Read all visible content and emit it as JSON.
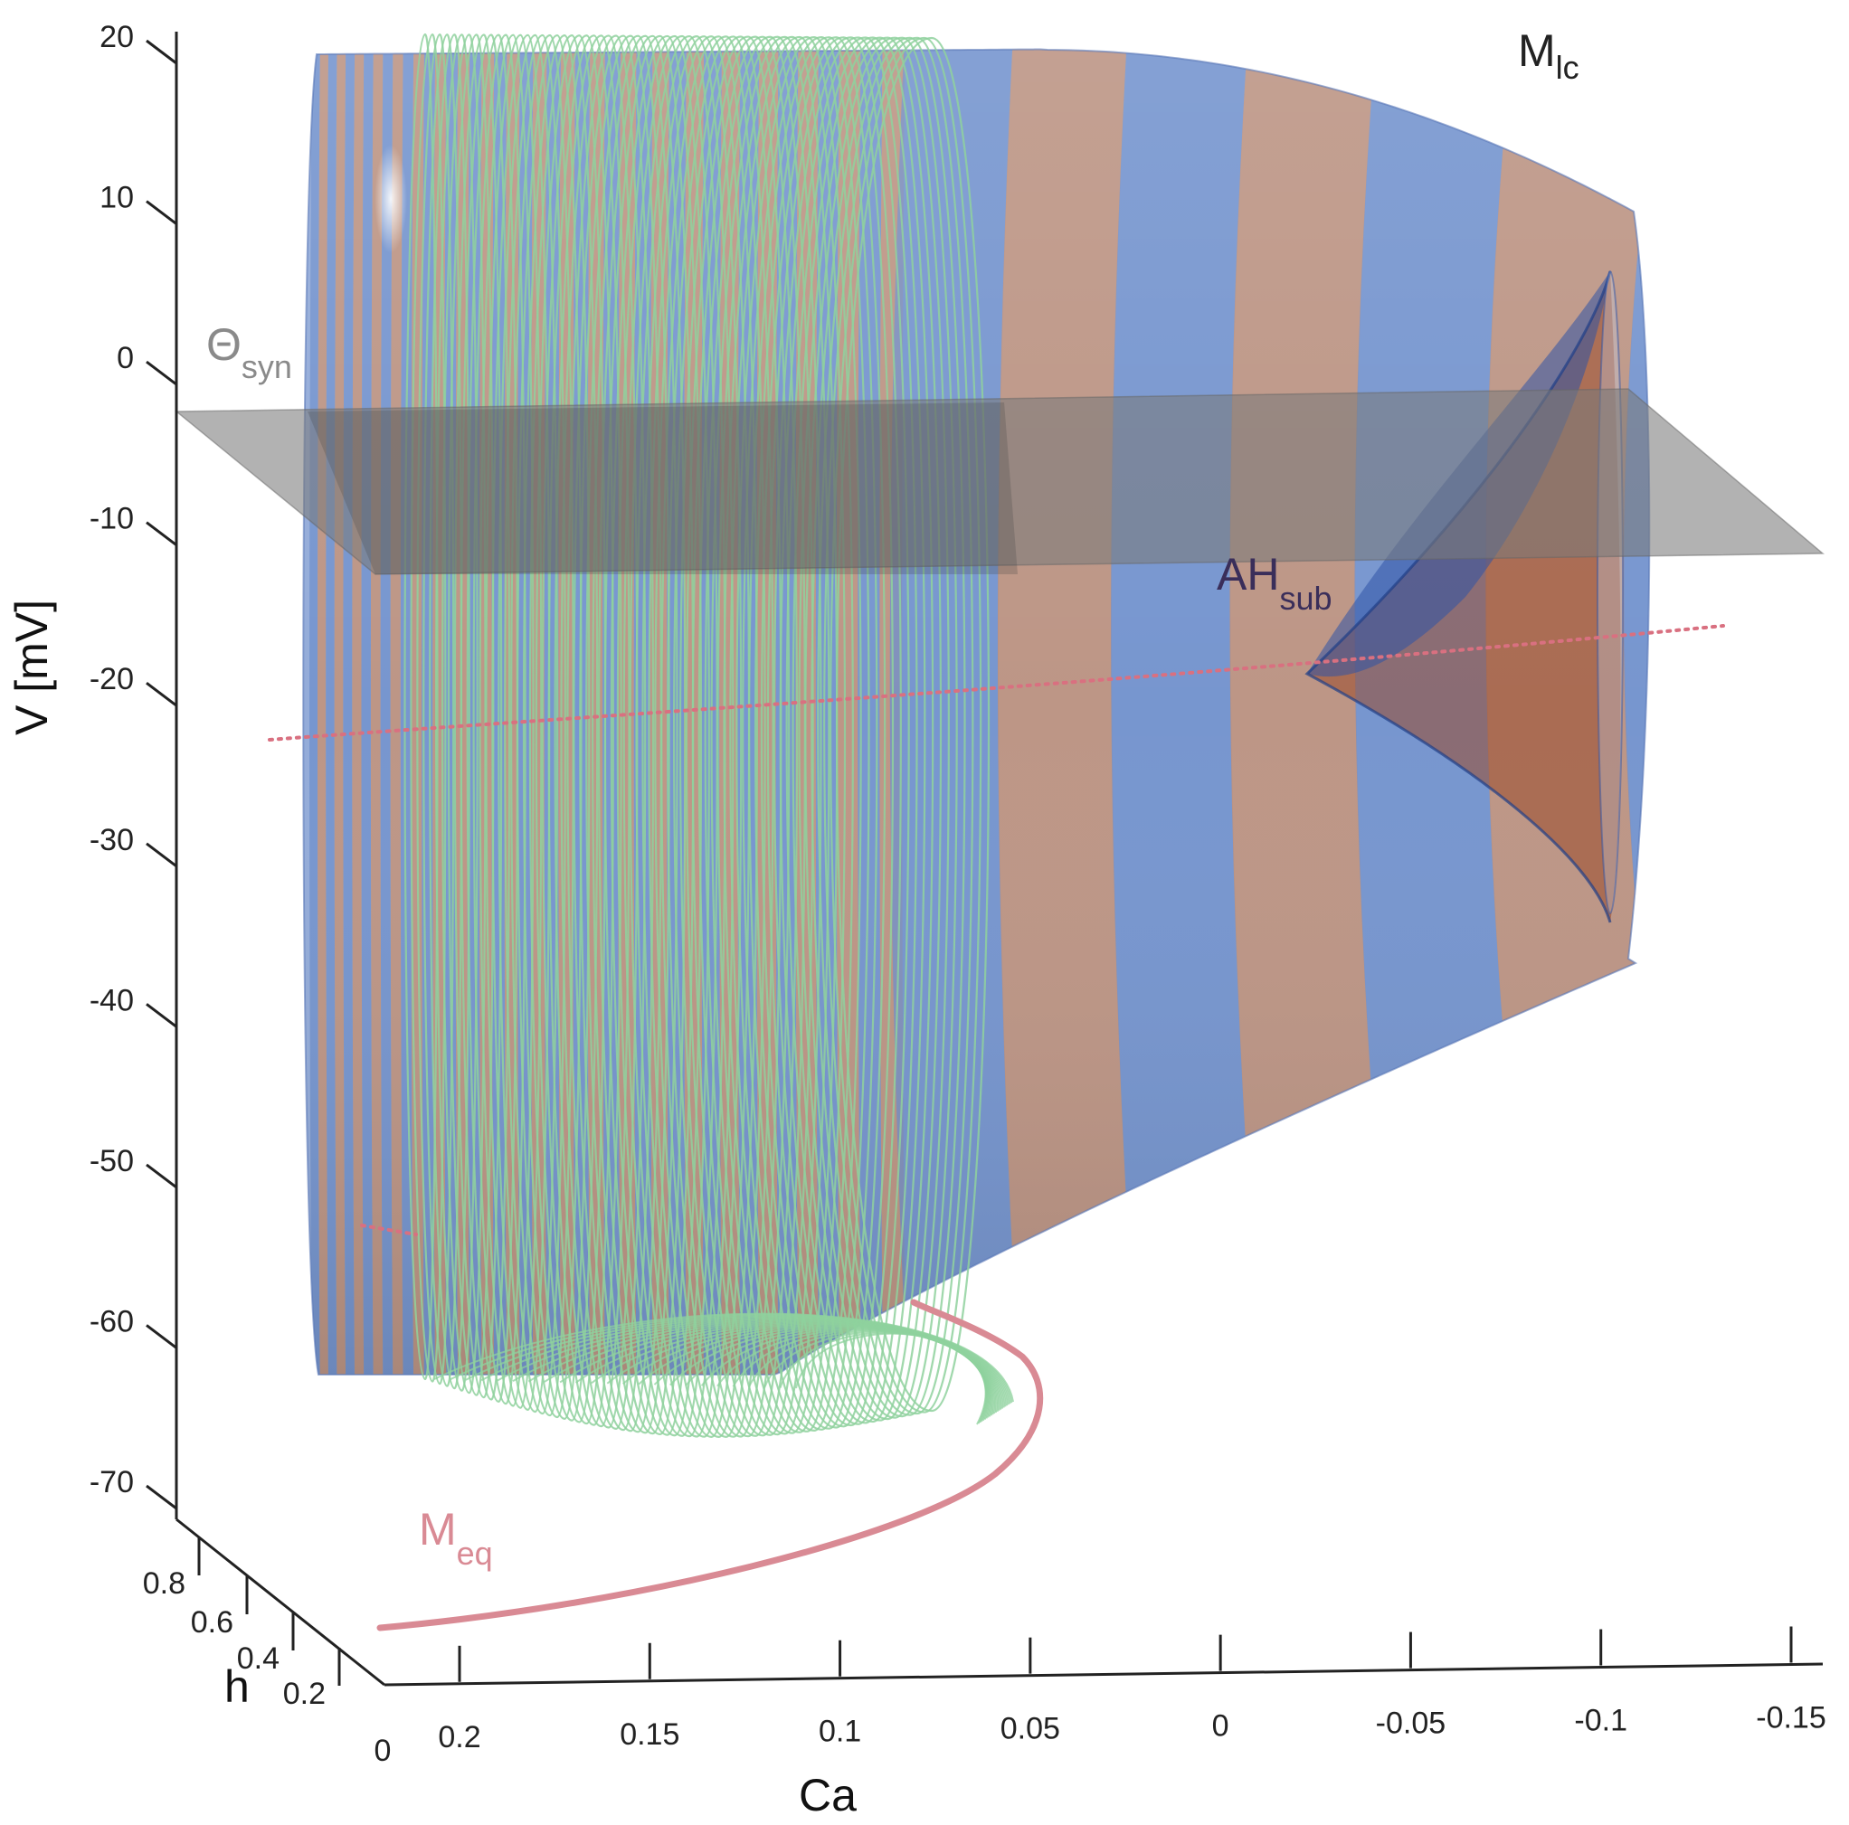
{
  "chart_data": {
    "type": "surface3d",
    "title": "",
    "axes": {
      "v": {
        "label": "V [mV]",
        "range": [
          -70,
          20
        ],
        "ticks": [
          "20",
          "10",
          "0",
          "-10",
          "-20",
          "-30",
          "-40",
          "-50",
          "-60",
          "-70"
        ]
      },
      "ca": {
        "label": "Ca",
        "range": [
          0.2,
          -0.15
        ],
        "ticks": [
          "0.2",
          "0.15",
          "0.1",
          "0.05",
          "0",
          "-0.05",
          "-0.1",
          "-0.15"
        ]
      },
      "h": {
        "label": "h",
        "range": [
          0.2,
          0.8
        ],
        "ticks": [
          "0.8",
          "0.6",
          "0.4",
          "0.2"
        ],
        "origin_label": "0"
      }
    },
    "annotations": {
      "m_lc": {
        "base": "M",
        "sub": "lc",
        "color": "#222222"
      },
      "ah_sub": {
        "base": "AH",
        "sub": "sub",
        "color": "#3a2e5a"
      },
      "theta_syn": {
        "base": "Θ",
        "sub": "syn",
        "color": "#8a8a8a"
      },
      "m_eq": {
        "base": "M",
        "sub": "eq",
        "color": "#d98a94"
      }
    },
    "series": [
      {
        "kind": "surface",
        "colors": [
          "#7090cc",
          "#c98f6e"
        ],
        "v_range": [
          -62,
          20
        ],
        "ca_range": [
          0.2,
          -0.1
        ]
      },
      {
        "kind": "plane",
        "color": "#8a8a8a",
        "v": -8
      },
      {
        "kind": "trajectory",
        "color": "#8fd19e",
        "v_range": [
          -65,
          20
        ],
        "ca_range": [
          0.2,
          0.05
        ]
      },
      {
        "kind": "curve",
        "color": "#d98a94"
      },
      {
        "kind": "dotted",
        "color": "#d97080"
      }
    ]
  }
}
